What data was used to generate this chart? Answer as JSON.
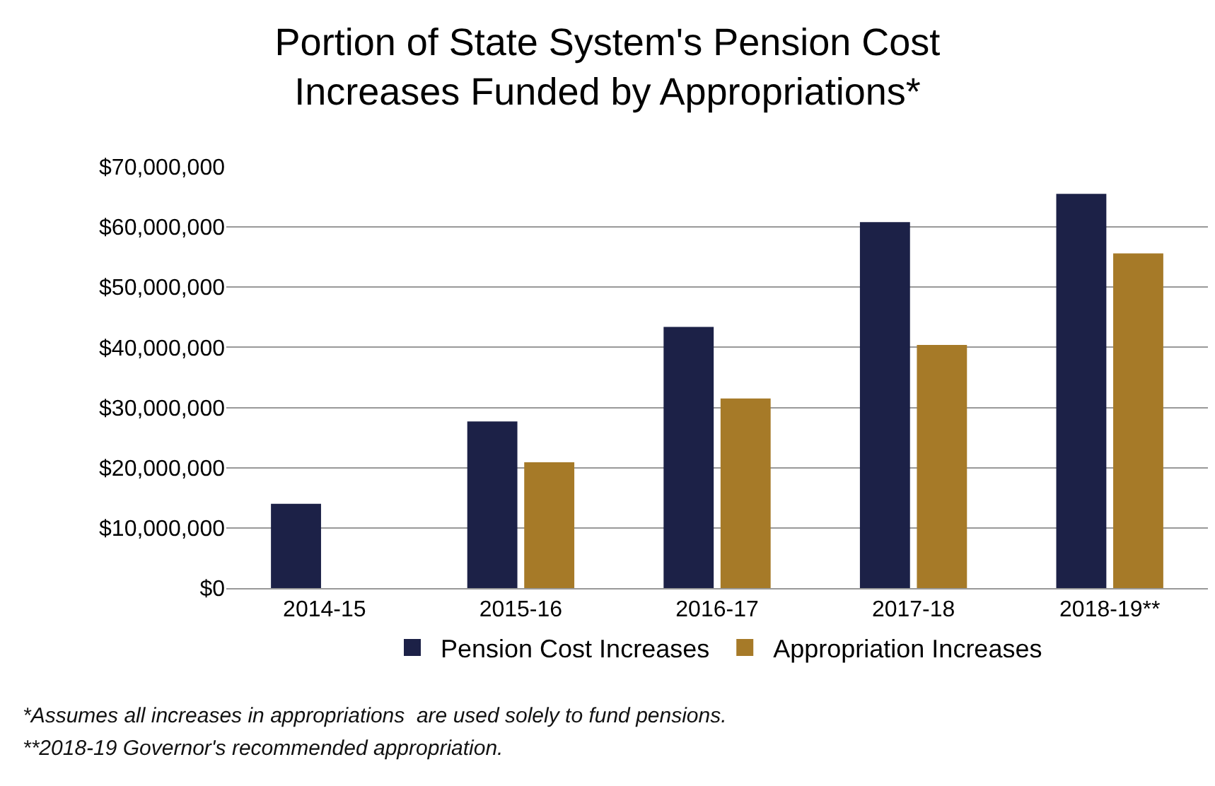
{
  "chart_data": {
    "type": "bar",
    "title": "Portion of State System's Pension Cost\nIncreases Funded by Appropriations*",
    "categories": [
      "2014-15",
      "2015-16",
      "2016-17",
      "2017-18",
      "2018-19**"
    ],
    "series": [
      {
        "name": "Pension Cost Increases",
        "color": "#1c2147",
        "values": [
          14000000,
          27700000,
          43400000,
          60800000,
          65500000
        ]
      },
      {
        "name": "Appropriation Increases",
        "color": "#a67a28",
        "values": [
          null,
          20900000,
          31500000,
          40400000,
          55600000
        ]
      }
    ],
    "ylim": [
      0,
      70000000
    ],
    "yticks": [
      {
        "value": 0,
        "label": "$0"
      },
      {
        "value": 10000000,
        "label": "$10,000,000"
      },
      {
        "value": 20000000,
        "label": "$20,000,000"
      },
      {
        "value": 30000000,
        "label": "$30,000,000"
      },
      {
        "value": 40000000,
        "label": "$40,000,000"
      },
      {
        "value": 50000000,
        "label": "$50,000,000"
      },
      {
        "value": 60000000,
        "label": "$60,000,000"
      },
      {
        "value": 70000000,
        "label": "$70,000,000"
      }
    ],
    "grid": "y",
    "legend": "bottom",
    "annotations": [
      "*Assumes all increases in appropriations  are used solely to fund pensions.",
      "**2018-19 Governor's recommended appropriation."
    ]
  }
}
